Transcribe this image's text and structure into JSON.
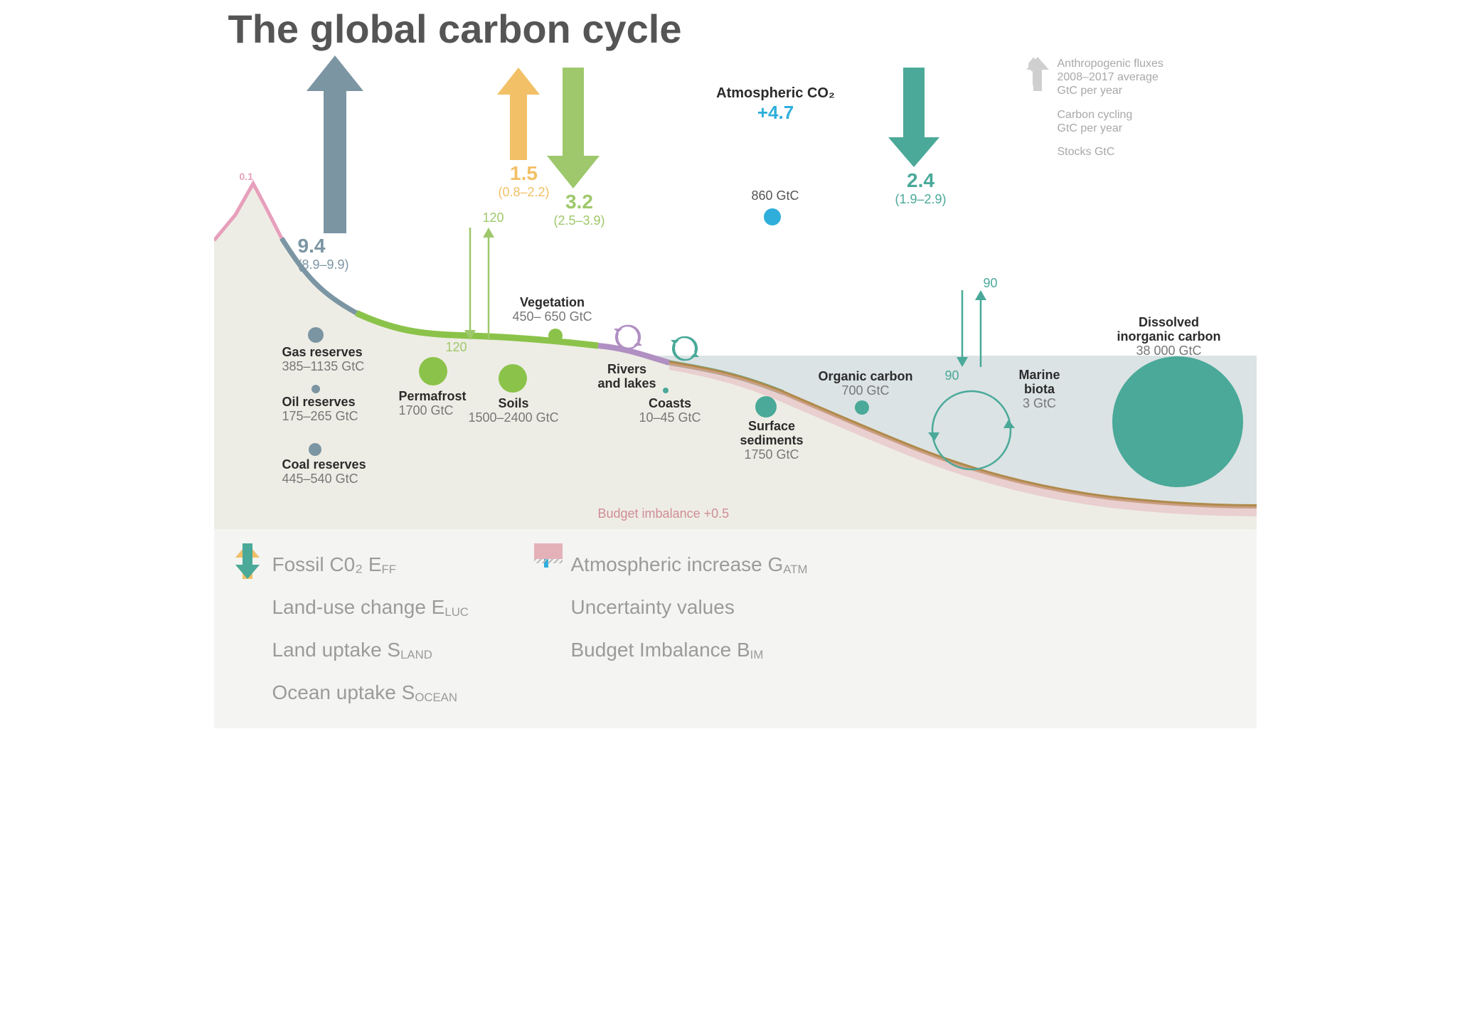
{
  "title": "The global carbon cycle",
  "colors": {
    "fossil": "#7b95a3",
    "luc": "#f2c066",
    "land": "#9ec86b",
    "ocean": "#4aa999",
    "atm": "#2faedb",
    "soil_green": "#8bc34a",
    "permafrost": "#8bc34a",
    "fossil_dot": "#7b95a3",
    "ocean_dot": "#4aa999",
    "river_purple": "#b08fc2",
    "budget": "#cf8d95",
    "volcano": "#e79fbb",
    "legend_grey": "#b8b8b8",
    "sea": "#dbe3e4",
    "land_fill": "#eeede5",
    "seabed": "#b08a4a",
    "text_grey": "#9b9b9b"
  },
  "fluxes": {
    "fossil": {
      "value": "9.4",
      "range": "(8.9–9.9)",
      "dir": "up"
    },
    "luc": {
      "value": "1.5",
      "range": "(0.8–2.2)",
      "dir": "up"
    },
    "land": {
      "value": "3.2",
      "range": "(2.5–3.9)",
      "dir": "down"
    },
    "ocean": {
      "value": "2.4",
      "range": "(1.9–2.9)",
      "dir": "down"
    }
  },
  "cycling": {
    "land_down": "120",
    "land_up": "120",
    "ocean_down": "90",
    "ocean_up": "90"
  },
  "volcano": "0.1",
  "atmosphere": {
    "label": "Atmospheric CO₂",
    "delta": "+4.7",
    "stock": "860 GtC"
  },
  "stocks": {
    "gas": {
      "name": "Gas reserves",
      "val": "385–1135 GtC"
    },
    "oil": {
      "name": "Oil reserves",
      "val": "175–265 GtC"
    },
    "coal": {
      "name": "Coal reserves",
      "val": "445–540 GtC"
    },
    "permafrost": {
      "name": "Permafrost",
      "val": "1700 GtC"
    },
    "soils": {
      "name": "Soils",
      "val": "1500–2400 GtC"
    },
    "vegetation": {
      "name": "Vegetation",
      "val": "450– 650 GtC"
    },
    "rivers": {
      "name": "Rivers\nand lakes",
      "val": ""
    },
    "coasts": {
      "name": "Coasts",
      "val": "10–45 GtC"
    },
    "sediments": {
      "name": "Surface\nsediments",
      "val": "1750 GtC"
    },
    "organic": {
      "name": "Organic carbon",
      "val": "700 GtC"
    },
    "biota": {
      "name": "Marine\nbiota",
      "val": "3 GtC"
    },
    "dic": {
      "name": "Dissolved\ninorganic carbon",
      "val": "38 000 GtC"
    }
  },
  "budget": "Budget imbalance +0.5",
  "legend_main": [
    {
      "icon": "arrow-up",
      "color": "#7b95a3",
      "label": "Fossil C0₂ E",
      "sub": "FF"
    },
    {
      "icon": "arrow-up",
      "color": "#f2c066",
      "label": "Land-use change E",
      "sub": "LUC"
    },
    {
      "icon": "arrow-down",
      "color": "#9ec86b",
      "label": "Land uptake S",
      "sub": "LAND"
    },
    {
      "icon": "arrow-down",
      "color": "#4aa999",
      "label": "Ocean uptake S",
      "sub": "OCEAN"
    }
  ],
  "legend_side": [
    {
      "icon": "plus",
      "color": "#2faedb",
      "label": "Atmospheric increase G",
      "sub": "ATM"
    },
    {
      "icon": "hatch",
      "color": "#b8b8b8",
      "label": "Uncertainty values",
      "sub": ""
    },
    {
      "icon": "swatch",
      "color": "#e4b1b9",
      "label": "Budget Imbalance B",
      "sub": "IM"
    }
  ],
  "key": [
    {
      "icon": "big-arrow",
      "t1": "Anthropogenic fluxes",
      "t2": "2008–2017 average",
      "t3": "GtC per year"
    },
    {
      "icon": "thin-arrow",
      "t1": "Carbon cycling",
      "t2": "GtC per year",
      "t3": ""
    },
    {
      "icon": "dot",
      "t1": "Stocks GtC",
      "t2": "",
      "t3": ""
    }
  ]
}
